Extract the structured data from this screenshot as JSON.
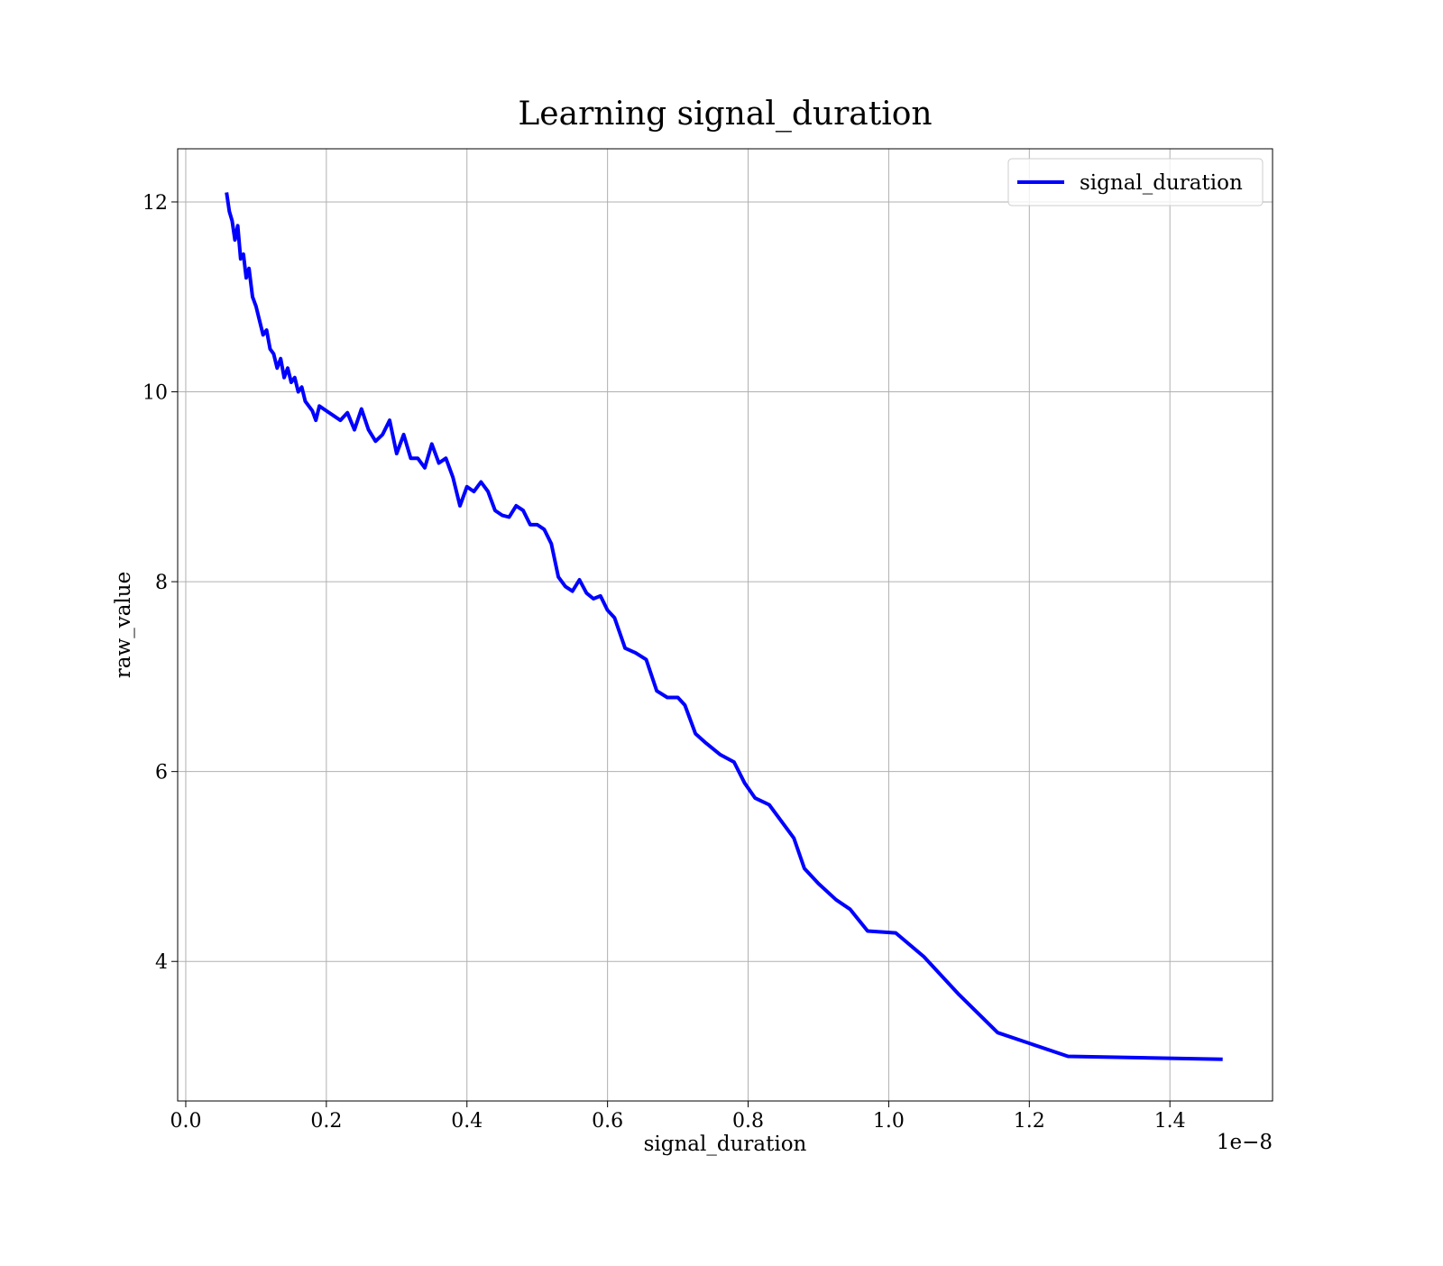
{
  "chart_data": {
    "type": "line",
    "title": "Learning signal_duration",
    "xlabel": "signal_duration",
    "ylabel": "raw_value",
    "x_offset_label": "1e−8",
    "x": [
      0.058,
      0.062,
      0.066,
      0.07,
      0.074,
      0.078,
      0.082,
      0.086,
      0.09,
      0.095,
      0.1,
      0.105,
      0.11,
      0.115,
      0.12,
      0.125,
      0.13,
      0.135,
      0.14,
      0.145,
      0.15,
      0.155,
      0.16,
      0.165,
      0.17,
      0.18,
      0.185,
      0.19,
      0.2,
      0.21,
      0.22,
      0.23,
      0.24,
      0.25,
      0.26,
      0.27,
      0.28,
      0.29,
      0.3,
      0.31,
      0.32,
      0.33,
      0.34,
      0.35,
      0.36,
      0.37,
      0.38,
      0.39,
      0.4,
      0.41,
      0.42,
      0.43,
      0.44,
      0.45,
      0.46,
      0.47,
      0.48,
      0.49,
      0.5,
      0.51,
      0.52,
      0.53,
      0.54,
      0.55,
      0.56,
      0.57,
      0.58,
      0.59,
      0.6,
      0.61,
      0.625,
      0.64,
      0.655,
      0.67,
      0.685,
      0.7,
      0.71,
      0.725,
      0.74,
      0.76,
      0.78,
      0.795,
      0.81,
      0.83,
      0.845,
      0.865,
      0.88,
      0.9,
      0.925,
      0.945,
      0.97,
      1.01,
      1.05,
      1.1,
      1.155,
      1.255,
      1.475
    ],
    "series": [
      {
        "name": "signal_duration",
        "color": "#0000ff",
        "values": [
          12.1,
          11.9,
          11.8,
          11.6,
          11.75,
          11.4,
          11.45,
          11.2,
          11.3,
          11.0,
          10.9,
          10.75,
          10.6,
          10.65,
          10.45,
          10.4,
          10.25,
          10.35,
          10.15,
          10.25,
          10.1,
          10.15,
          10.0,
          10.05,
          9.9,
          9.8,
          9.7,
          9.85,
          9.8,
          9.75,
          9.7,
          9.78,
          9.6,
          9.82,
          9.6,
          9.48,
          9.55,
          9.7,
          9.35,
          9.55,
          9.3,
          9.3,
          9.2,
          9.45,
          9.25,
          9.3,
          9.1,
          8.8,
          9.0,
          8.95,
          9.05,
          8.95,
          8.75,
          8.7,
          8.68,
          8.8,
          8.75,
          8.6,
          8.6,
          8.55,
          8.4,
          8.05,
          7.95,
          7.9,
          8.02,
          7.88,
          7.82,
          7.85,
          7.7,
          7.62,
          7.3,
          7.25,
          7.18,
          6.85,
          6.78,
          6.78,
          6.7,
          6.4,
          6.3,
          6.18,
          6.1,
          5.88,
          5.72,
          5.65,
          5.5,
          5.3,
          4.98,
          4.82,
          4.65,
          4.55,
          4.32,
          4.3,
          4.05,
          3.65,
          3.25,
          3.0,
          2.97
        ]
      }
    ],
    "xlim": [
      -0.0115,
      1.546
    ],
    "ylim": [
      2.53,
      12.56
    ],
    "xticks": [
      {
        "value": 0,
        "label": "0.0"
      },
      0.2,
      0.4,
      0.6,
      0.8,
      {
        "value": 1,
        "label": "1.0"
      },
      1.2,
      1.4
    ],
    "yticks": [
      4,
      6,
      8,
      10,
      12
    ],
    "grid": true,
    "legend": "upper right"
  }
}
